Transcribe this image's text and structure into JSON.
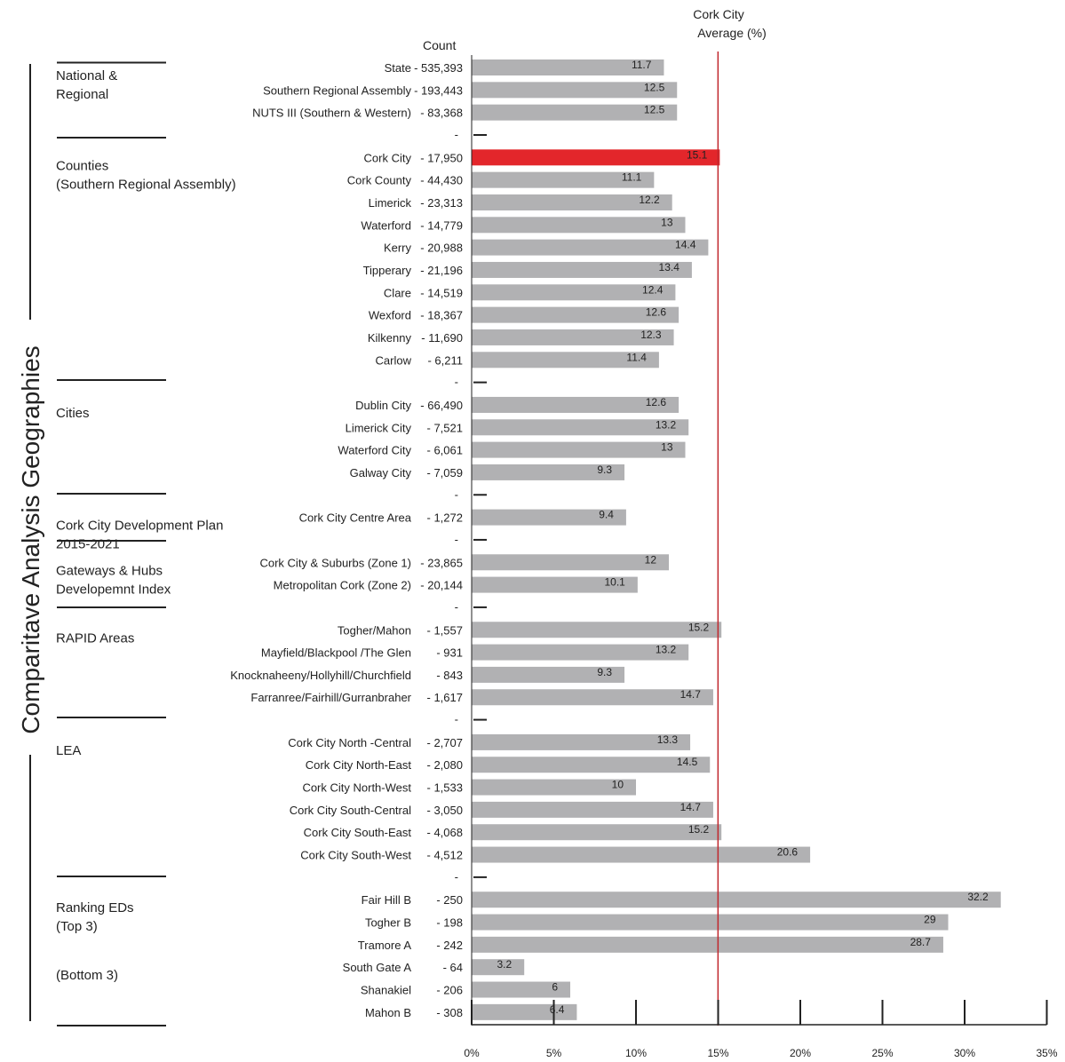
{
  "chart_data": {
    "type": "bar",
    "orientation": "horizontal",
    "title": "Comparitave Analysis Geographies",
    "count_header": "Count",
    "reference": {
      "label_line1": "Cork City",
      "label_line2": "Average (%)",
      "value": 15.1,
      "color": "#c0272d"
    },
    "bar_color": "#b1b1b3",
    "highlight_color": "#e3262b",
    "xlim": [
      0,
      35
    ],
    "xticks": [
      {
        "value": 0,
        "label": "0%"
      },
      {
        "value": 5,
        "label": "5%"
      },
      {
        "value": 10,
        "label": "10%"
      },
      {
        "value": 15,
        "label": "15%"
      },
      {
        "value": 20,
        "label": "20%"
      },
      {
        "value": 25,
        "label": "25%"
      },
      {
        "value": 30,
        "label": "30%"
      },
      {
        "value": 35,
        "label": "35%"
      }
    ],
    "groups": [
      {
        "line1": "National &",
        "line2": "Regional"
      },
      {
        "line1": "Counties",
        "line2": "(Southern Regional Assembly)"
      },
      {
        "line1": "Cities",
        "line2": ""
      },
      {
        "line1": "Cork City Development Plan",
        "line2": "2015-2021"
      },
      {
        "line1": "Gateways & Hubs",
        "line2": "Developemnt Index"
      },
      {
        "line1": "RAPID Areas",
        "line2": ""
      },
      {
        "line1": "LEA",
        "line2": ""
      },
      {
        "line1": "Ranking EDs",
        "line2": "(Top 3)"
      },
      {
        "line1": "(Bottom 3)",
        "line2": ""
      }
    ],
    "rows": [
      {
        "name": "State",
        "count": "- 535,393",
        "value": 11.7,
        "label": "11.7"
      },
      {
        "name": "Southern Regional Assembly",
        "count": "- 193,443",
        "value": 12.5,
        "label": "12.5"
      },
      {
        "name": "NUTS III (Southern & Western)",
        "count": "- 83,368",
        "value": 12.5,
        "label": "12.5"
      },
      {
        "name": "Cork City",
        "count": "- 17,950",
        "value": 15.1,
        "label": "15.1",
        "highlight": true
      },
      {
        "name": "Cork County",
        "count": "- 44,430",
        "value": 11.1,
        "label": "11.1"
      },
      {
        "name": "Limerick",
        "count": "- 23,313",
        "value": 12.2,
        "label": "12.2"
      },
      {
        "name": "Waterford",
        "count": "- 14,779",
        "value": 13,
        "label": "13"
      },
      {
        "name": "Kerry",
        "count": "- 20,988",
        "value": 14.4,
        "label": "14.4"
      },
      {
        "name": "Tipperary",
        "count": "- 21,196",
        "value": 13.4,
        "label": "13.4"
      },
      {
        "name": "Clare",
        "count": "- 14,519",
        "value": 12.4,
        "label": "12.4"
      },
      {
        "name": "Wexford",
        "count": "- 18,367",
        "value": 12.6,
        "label": "12.6"
      },
      {
        "name": "Kilkenny",
        "count": "- 11,690",
        "value": 12.3,
        "label": "12.3"
      },
      {
        "name": "Carlow",
        "count": "- 6,211",
        "value": 11.4,
        "label": "11.4"
      },
      {
        "name": "Dublin City",
        "count": "- 66,490",
        "value": 12.6,
        "label": "12.6"
      },
      {
        "name": "Limerick City",
        "count": "- 7,521",
        "value": 13.2,
        "label": "13.2"
      },
      {
        "name": "Waterford City",
        "count": "- 6,061",
        "value": 13,
        "label": "13"
      },
      {
        "name": "Galway City",
        "count": "- 7,059",
        "value": 9.3,
        "label": "9.3"
      },
      {
        "name": "Cork City Centre Area",
        "count": "- 1,272",
        "value": 9.4,
        "label": "9.4"
      },
      {
        "name": "Cork City & Suburbs (Zone 1)",
        "count": "- 23,865",
        "value": 12,
        "label": "12"
      },
      {
        "name": "Metropolitan Cork (Zone 2)",
        "count": "- 20,144",
        "value": 10.1,
        "label": "10.1"
      },
      {
        "name": "Togher/Mahon",
        "count": "- 1,557",
        "value": 15.2,
        "label": "15.2"
      },
      {
        "name": "Mayfield/Blackpool /The Glen",
        "count": "- 931",
        "value": 13.2,
        "label": "13.2"
      },
      {
        "name": "Knocknaheeny/Hollyhill/Churchfield",
        "count": "- 843",
        "value": 9.3,
        "label": "9.3"
      },
      {
        "name": "Farranree/Fairhill/Gurranbraher",
        "count": "- 1,617",
        "value": 14.7,
        "label": "14.7"
      },
      {
        "name": "Cork City North -Central",
        "count": "- 2,707",
        "value": 13.3,
        "label": "13.3"
      },
      {
        "name": "Cork City North-East",
        "count": "- 2,080",
        "value": 14.5,
        "label": "14.5"
      },
      {
        "name": "Cork City North-West",
        "count": "- 1,533",
        "value": 10,
        "label": "10"
      },
      {
        "name": "Cork City South-Central",
        "count": "- 3,050",
        "value": 14.7,
        "label": "14.7"
      },
      {
        "name": "Cork City South-East",
        "count": "- 4,068",
        "value": 15.2,
        "label": "15.2"
      },
      {
        "name": "Cork City South-West",
        "count": "- 4,512",
        "value": 20.6,
        "label": "20.6"
      },
      {
        "name": "Fair Hill B",
        "count": "- 250",
        "value": 32.2,
        "label": "32.2"
      },
      {
        "name": "Togher B",
        "count": "- 198",
        "value": 29,
        "label": "29"
      },
      {
        "name": "Tramore A",
        "count": "- 242",
        "value": 28.7,
        "label": "28.7"
      },
      {
        "name": "South Gate A",
        "count": "- 64",
        "value": 3.2,
        "label": "3.2"
      },
      {
        "name": "Shanakiel",
        "count": "- 206",
        "value": 6,
        "label": "6"
      },
      {
        "name": "Mahon B",
        "count": "- 308",
        "value": 6.4,
        "label": "6.4"
      }
    ],
    "separator_marker": "-"
  }
}
